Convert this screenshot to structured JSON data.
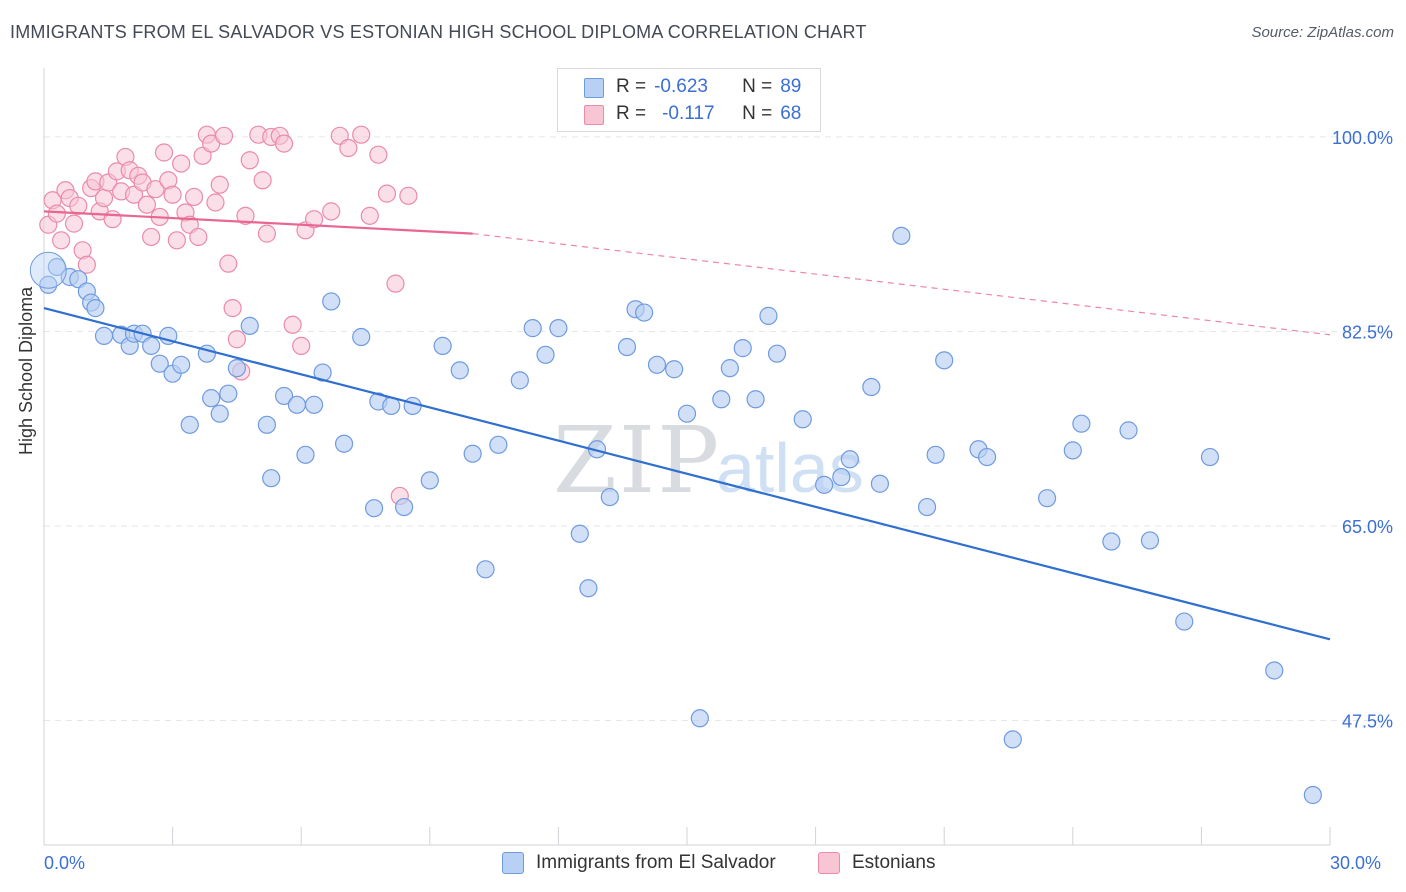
{
  "title": "IMMIGRANTS FROM EL SALVADOR VS ESTONIAN HIGH SCHOOL DIPLOMA CORRELATION CHART",
  "source": "Source: ZipAtlas.com",
  "colors": {
    "blue_fill": "#b8d0f3",
    "blue_stroke": "#6f9be0",
    "blue_line": "#2f6fd0",
    "pink_fill": "#f8c5d5",
    "pink_stroke": "#ec8aaa",
    "pink_line": "#e8668f",
    "tick_text": "#3b6fd4",
    "grid": "#e3e6ea"
  },
  "stats": {
    "blue": {
      "r_label": "R =",
      "r_value": "-0.623",
      "n_label": "N =",
      "n_value": "89"
    },
    "pink": {
      "r_label": "R =",
      "r_value": "-0.117",
      "n_label": "N =",
      "n_value": "68"
    }
  },
  "chart_data": {
    "type": "scatter",
    "title": "IMMIGRANTS FROM EL SALVADOR VS ESTONIAN HIGH SCHOOL DIPLOMA CORRELATION CHART",
    "xlabel": "",
    "ylabel": "High School Diploma",
    "xlim": [
      0,
      30
    ],
    "ylim": [
      36.3,
      106.2
    ],
    "x_tick_labels": [
      "0.0%",
      "30.0%"
    ],
    "y_ticks": [
      {
        "value": 100.0,
        "label": "100.0%"
      },
      {
        "value": 82.5,
        "label": "82.5%"
      },
      {
        "value": 65.0,
        "label": "65.0%"
      },
      {
        "value": 47.5,
        "label": "47.5%"
      }
    ],
    "grid": true,
    "legend_position": "bottom-center",
    "watermark": {
      "zip": "ZIP",
      "atlas": "atlas"
    },
    "series": [
      {
        "name": "Immigrants from El Salvador",
        "color": "#b8d0f3",
        "trend": {
          "x": [
            0,
            30
          ],
          "y": [
            84.6,
            54.8
          ]
        },
        "points": [
          [
            0.1,
            86.7
          ],
          [
            0.3,
            88.3
          ],
          [
            0.6,
            87.4
          ],
          [
            0.8,
            87.2
          ],
          [
            1.0,
            86.1
          ],
          [
            1.1,
            85.1
          ],
          [
            1.2,
            84.6
          ],
          [
            1.4,
            82.1
          ],
          [
            1.8,
            82.2
          ],
          [
            2.0,
            81.2
          ],
          [
            2.1,
            82.3
          ],
          [
            2.3,
            82.3
          ],
          [
            2.5,
            81.2
          ],
          [
            2.7,
            79.6
          ],
          [
            2.9,
            82.1
          ],
          [
            3.0,
            78.7
          ],
          [
            3.2,
            79.5
          ],
          [
            3.4,
            74.1
          ],
          [
            3.8,
            80.5
          ],
          [
            3.9,
            76.5
          ],
          [
            4.1,
            75.1
          ],
          [
            4.3,
            76.9
          ],
          [
            4.5,
            79.2
          ],
          [
            4.8,
            83.0
          ],
          [
            5.2,
            74.1
          ],
          [
            5.3,
            69.3
          ],
          [
            5.6,
            76.7
          ],
          [
            5.9,
            75.9
          ],
          [
            6.1,
            71.4
          ],
          [
            6.3,
            75.9
          ],
          [
            6.5,
            78.8
          ],
          [
            6.7,
            85.2
          ],
          [
            7.0,
            72.4
          ],
          [
            7.4,
            82.0
          ],
          [
            7.7,
            66.6
          ],
          [
            7.8,
            76.2
          ],
          [
            8.1,
            75.8
          ],
          [
            8.4,
            66.7
          ],
          [
            8.6,
            75.8
          ],
          [
            9.0,
            69.1
          ],
          [
            9.3,
            81.2
          ],
          [
            9.7,
            79.0
          ],
          [
            10.0,
            71.5
          ],
          [
            10.3,
            61.1
          ],
          [
            10.6,
            72.3
          ],
          [
            11.1,
            78.1
          ],
          [
            11.4,
            82.8
          ],
          [
            11.7,
            80.4
          ],
          [
            12.0,
            82.8
          ],
          [
            12.5,
            64.3
          ],
          [
            12.7,
            59.4
          ],
          [
            12.9,
            71.9
          ],
          [
            13.2,
            67.6
          ],
          [
            13.6,
            81.1
          ],
          [
            13.8,
            84.5
          ],
          [
            14.0,
            84.2
          ],
          [
            14.3,
            79.5
          ],
          [
            14.7,
            79.1
          ],
          [
            15.0,
            75.1
          ],
          [
            15.3,
            47.7
          ],
          [
            15.8,
            76.4
          ],
          [
            16.0,
            79.2
          ],
          [
            16.3,
            81.0
          ],
          [
            16.6,
            76.4
          ],
          [
            16.9,
            83.9
          ],
          [
            17.1,
            80.5
          ],
          [
            17.7,
            74.6
          ],
          [
            18.2,
            68.7
          ],
          [
            18.6,
            69.4
          ],
          [
            18.8,
            71.0
          ],
          [
            19.3,
            77.5
          ],
          [
            19.5,
            68.8
          ],
          [
            20.0,
            91.1
          ],
          [
            20.6,
            66.7
          ],
          [
            20.8,
            71.4
          ],
          [
            21.0,
            79.9
          ],
          [
            21.8,
            71.9
          ],
          [
            22.0,
            71.2
          ],
          [
            22.6,
            45.8
          ],
          [
            23.4,
            67.5
          ],
          [
            24.0,
            71.8
          ],
          [
            24.2,
            74.2
          ],
          [
            24.9,
            63.6
          ],
          [
            25.3,
            73.6
          ],
          [
            25.8,
            63.7
          ],
          [
            26.6,
            56.4
          ],
          [
            27.2,
            71.2
          ],
          [
            28.7,
            52.0
          ],
          [
            29.6,
            40.8
          ]
        ]
      },
      {
        "name": "Estonians",
        "color": "#f8c5d5",
        "trend": {
          "x": [
            0,
            10
          ],
          "y": [
            93.3,
            91.3
          ]
        },
        "trend_dashed": {
          "x": [
            10,
            30
          ],
          "y": [
            91.3,
            82.2
          ]
        },
        "points": [
          [
            0.1,
            92.1
          ],
          [
            0.2,
            94.3
          ],
          [
            0.3,
            93.1
          ],
          [
            0.4,
            90.7
          ],
          [
            0.5,
            95.2
          ],
          [
            0.6,
            94.5
          ],
          [
            0.7,
            92.2
          ],
          [
            0.8,
            93.8
          ],
          [
            0.9,
            89.8
          ],
          [
            1.0,
            88.5
          ],
          [
            1.1,
            95.4
          ],
          [
            1.2,
            96.0
          ],
          [
            1.3,
            93.3
          ],
          [
            1.4,
            94.5
          ],
          [
            1.5,
            95.9
          ],
          [
            1.6,
            92.6
          ],
          [
            1.7,
            96.9
          ],
          [
            1.8,
            95.1
          ],
          [
            1.9,
            98.2
          ],
          [
            2.0,
            97.0
          ],
          [
            2.1,
            94.8
          ],
          [
            2.2,
            96.5
          ],
          [
            2.3,
            95.9
          ],
          [
            2.4,
            93.9
          ],
          [
            2.5,
            91.0
          ],
          [
            2.6,
            95.3
          ],
          [
            2.7,
            92.8
          ],
          [
            2.8,
            98.6
          ],
          [
            2.9,
            96.1
          ],
          [
            3.0,
            94.8
          ],
          [
            3.1,
            90.7
          ],
          [
            3.2,
            97.6
          ],
          [
            3.3,
            93.2
          ],
          [
            3.4,
            92.1
          ],
          [
            3.5,
            94.6
          ],
          [
            3.6,
            91.0
          ],
          [
            3.7,
            98.3
          ],
          [
            3.8,
            100.2
          ],
          [
            3.9,
            99.4
          ],
          [
            4.0,
            94.1
          ],
          [
            4.1,
            95.7
          ],
          [
            4.2,
            100.1
          ],
          [
            4.3,
            88.6
          ],
          [
            4.4,
            84.6
          ],
          [
            4.5,
            81.8
          ],
          [
            4.6,
            78.9
          ],
          [
            4.7,
            92.9
          ],
          [
            4.8,
            97.9
          ],
          [
            5.0,
            100.2
          ],
          [
            5.1,
            96.1
          ],
          [
            5.2,
            91.3
          ],
          [
            5.3,
            100.0
          ],
          [
            5.5,
            100.1
          ],
          [
            5.6,
            99.4
          ],
          [
            5.8,
            83.1
          ],
          [
            6.0,
            81.2
          ],
          [
            6.1,
            91.6
          ],
          [
            6.3,
            92.6
          ],
          [
            6.7,
            93.3
          ],
          [
            6.9,
            100.1
          ],
          [
            7.1,
            99.0
          ],
          [
            7.4,
            100.2
          ],
          [
            7.6,
            92.9
          ],
          [
            7.8,
            98.4
          ],
          [
            8.0,
            94.9
          ],
          [
            8.2,
            86.8
          ],
          [
            8.3,
            67.7
          ],
          [
            8.5,
            94.7
          ]
        ]
      }
    ]
  },
  "legend": {
    "items": [
      {
        "label": "Immigrants from El Salvador",
        "color": "#b8d0f3"
      },
      {
        "label": "Estonians",
        "color": "#f8c5d5"
      }
    ]
  }
}
